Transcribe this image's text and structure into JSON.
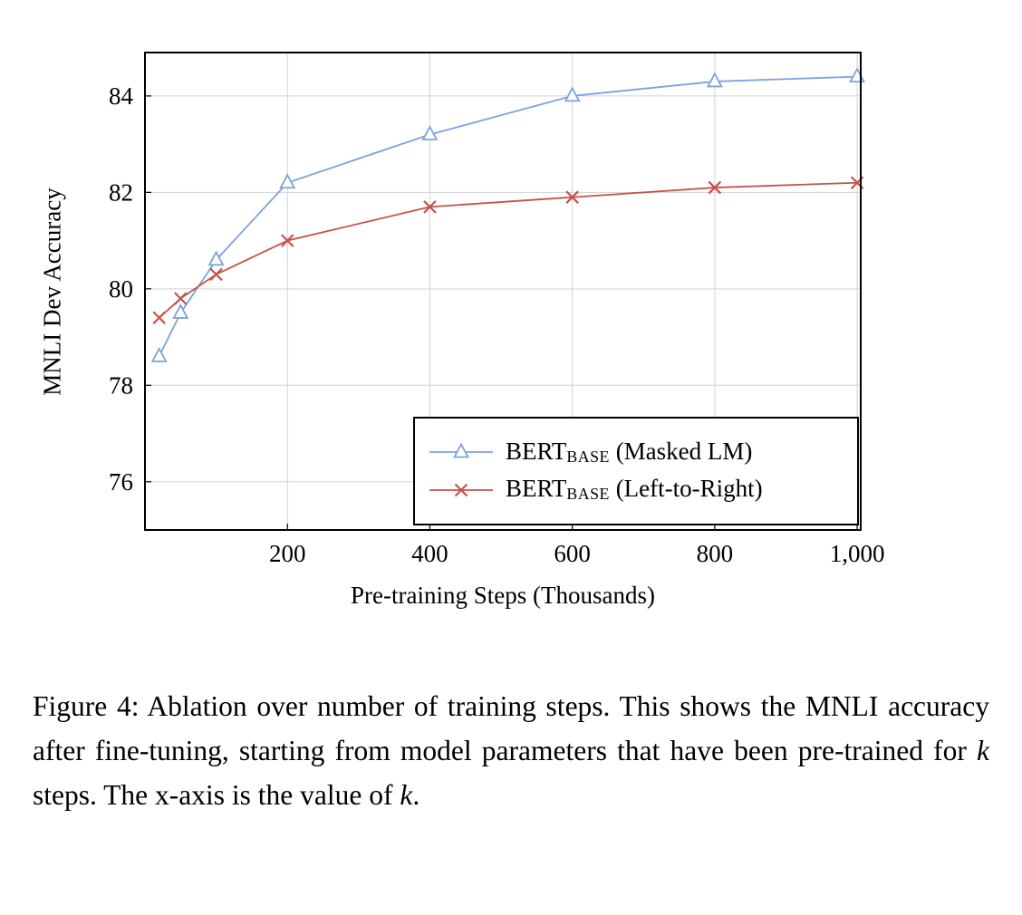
{
  "chart_data": {
    "type": "line",
    "title": "",
    "xlabel": "Pre-training Steps (Thousands)",
    "ylabel": "MNLI Dev Accuracy",
    "xlim": [
      0,
      1005
    ],
    "ylim": [
      75,
      84.9
    ],
    "xticks": [
      200,
      400,
      600,
      800,
      1000
    ],
    "xtick_labels": [
      "200",
      "400",
      "600",
      "800",
      "1,000"
    ],
    "yticks": [
      76,
      78,
      80,
      82,
      84
    ],
    "ytick_labels": [
      "76",
      "78",
      "80",
      "82",
      "84"
    ],
    "grid": true,
    "legend_position": "bottom-right-inside",
    "x": [
      20,
      50,
      100,
      200,
      400,
      600,
      800,
      1000
    ],
    "series": [
      {
        "name": "BERT_BASE (Masked LM)",
        "legend": {
          "prefix": "BERT",
          "sub": "BASE",
          "suffix": " (Masked LM)"
        },
        "color": "#7da2dc",
        "marker": "triangle",
        "values": [
          78.6,
          79.5,
          80.6,
          82.2,
          83.2,
          84.0,
          84.3,
          84.4
        ]
      },
      {
        "name": "BERT_BASE (Left-to-Right)",
        "legend": {
          "prefix": "BERT",
          "sub": "BASE",
          "suffix": " (Left-to-Right)"
        },
        "color": "#c4524a",
        "marker": "x",
        "values": [
          79.4,
          79.8,
          80.3,
          81.0,
          81.7,
          81.9,
          82.1,
          82.2
        ]
      }
    ],
    "colors": {
      "grid": "#d3d3d3",
      "frame": "#000000",
      "background": "#ffffff"
    }
  },
  "caption": {
    "segments": [
      {
        "t": "Figure 4: Ablation over number of training steps. This shows the MNLI accuracy after fine-tuning, starting from model parameters that have been pre-trained for ",
        "i": false
      },
      {
        "t": "k",
        "i": true
      },
      {
        "t": " steps. The x-axis is the value of ",
        "i": false
      },
      {
        "t": "k",
        "i": true
      },
      {
        "t": ".",
        "i": false
      }
    ]
  }
}
